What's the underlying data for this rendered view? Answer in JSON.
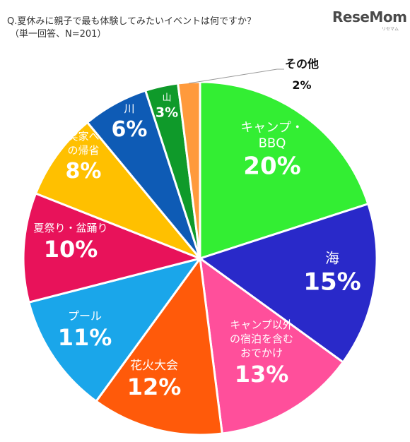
{
  "header": {
    "question": "Q.夏休みに親子で最も体験してみたいイベントは何ですか？",
    "sub": "（単一回答、N=201）",
    "logo": "ReseMom",
    "logo_sub": "リセマム"
  },
  "chart_data": {
    "type": "pie",
    "title": "Q.夏休みに親子で最も体験してみたいイベントは何ですか？",
    "subtitle": "（単一回答、N=201）",
    "slices": [
      {
        "label": "キャンプ・BBQ",
        "lines": [
          "キャンプ・",
          "BBQ"
        ],
        "value": 20,
        "pct_label": "20%",
        "color": "#33ee33"
      },
      {
        "label": "海",
        "lines": [
          "海"
        ],
        "value": 15,
        "pct_label": "15%",
        "color": "#2929c9"
      },
      {
        "label": "キャンプ以外の宿泊を含むおでかけ",
        "lines": [
          "キャンプ以外",
          "の宿泊を含む",
          "おでかけ"
        ],
        "value": 13,
        "pct_label": "13%",
        "color": "#ff4f9b"
      },
      {
        "label": "花火大会",
        "lines": [
          "花火大会"
        ],
        "value": 12,
        "pct_label": "12%",
        "color": "#ff5a0a"
      },
      {
        "label": "プール",
        "lines": [
          "プール"
        ],
        "value": 11,
        "pct_label": "11%",
        "color": "#1aa6ea"
      },
      {
        "label": "夏祭り・盆踊り",
        "lines": [
          "夏祭り・盆踊り"
        ],
        "value": 10,
        "pct_label": "10%",
        "color": "#e8125a"
      },
      {
        "label": "実家への帰省",
        "lines": [
          "実家へ",
          "の帰省"
        ],
        "value": 8,
        "pct_label": "8%",
        "color": "#ffc000"
      },
      {
        "label": "川",
        "lines": [
          "川"
        ],
        "value": 6,
        "pct_label": "6%",
        "color": "#0e5bb5"
      },
      {
        "label": "山",
        "lines": [
          "山"
        ],
        "value": 3,
        "pct_label": "3%",
        "color": "#0f9a2a"
      },
      {
        "label": "その他",
        "lines": [
          "その他"
        ],
        "value": 2,
        "pct_label": "2%",
        "color": "#ff9a3c"
      }
    ]
  }
}
